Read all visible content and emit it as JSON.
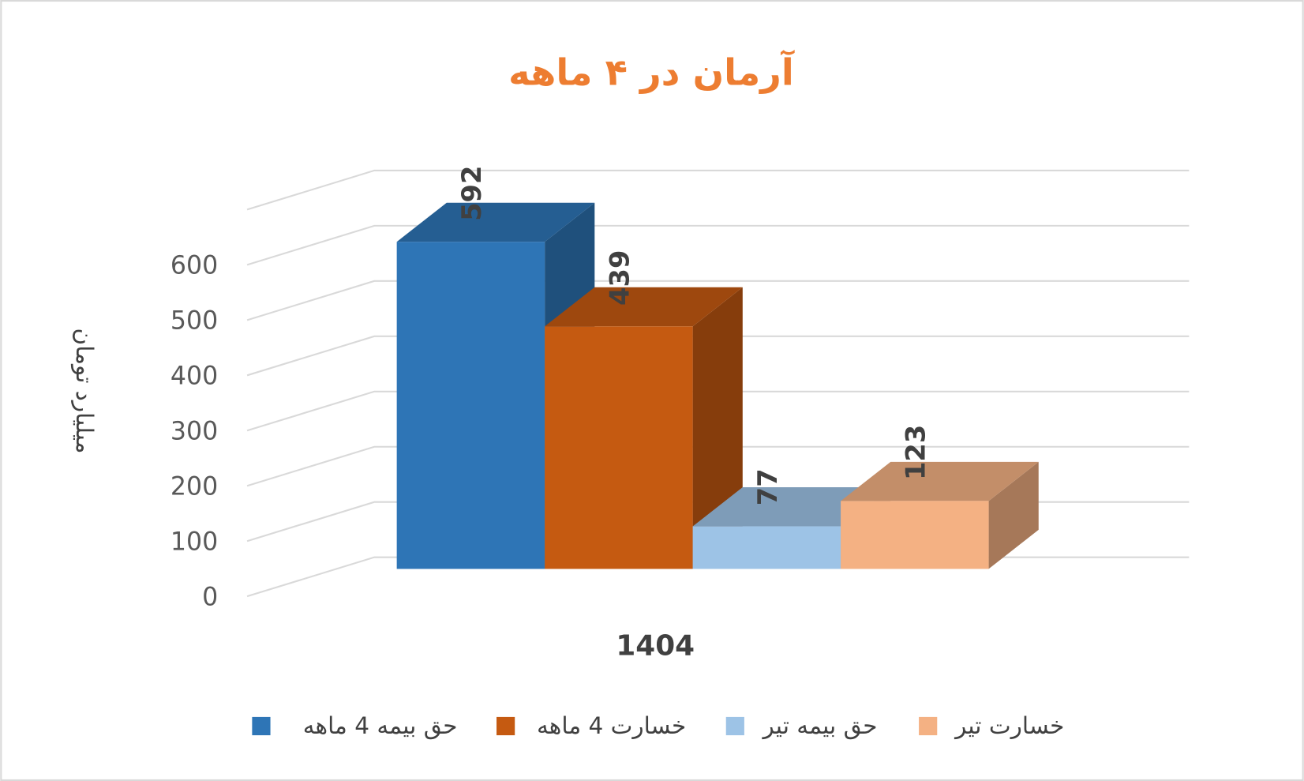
{
  "chart_data": {
    "type": "bar3d",
    "title": "آرمان در ۴ ماهه",
    "y_label": "میلیارد تومان",
    "categories": [
      "1404"
    ],
    "series": [
      {
        "name": "حق بیمه  4 ماهه",
        "color": "#2e75b6",
        "values": [
          592
        ]
      },
      {
        "name": "خسارت 4 ماهه",
        "color": "#c55a11",
        "values": [
          439
        ]
      },
      {
        "name": "حق بیمه تیر",
        "color": "#9dc3e6",
        "values": [
          77
        ]
      },
      {
        "name": "خسارت تیر",
        "color": "#f4b183",
        "values": [
          123
        ]
      }
    ],
    "ylim": [
      0,
      700
    ],
    "yticks": [
      0,
      100,
      200,
      300,
      400,
      500,
      600
    ],
    "grid": true,
    "legend": "bottom"
  }
}
